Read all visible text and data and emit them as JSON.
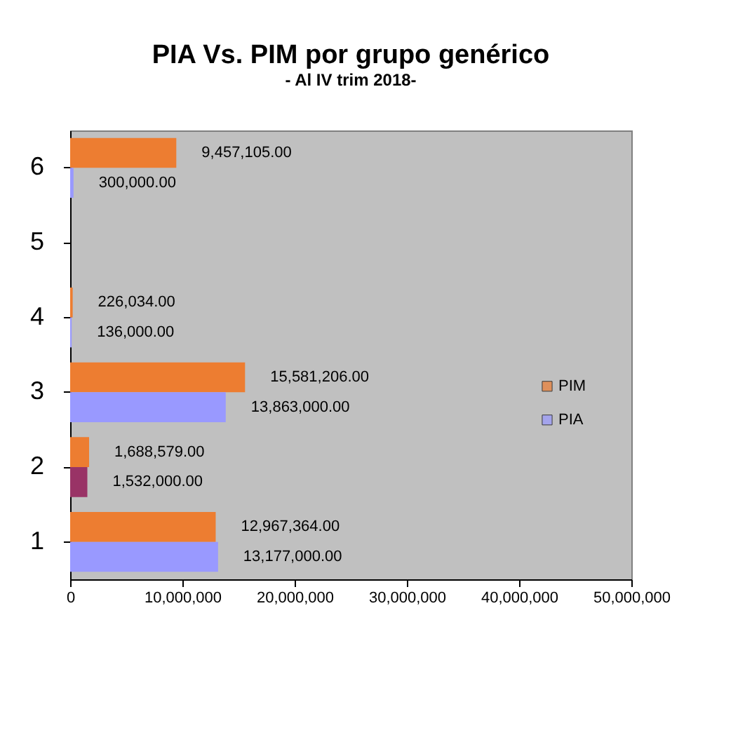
{
  "chart_data": {
    "type": "bar",
    "orientation": "horizontal",
    "title": "PIA Vs. PIM por grupo genérico",
    "subtitle": "-  Al IV trim 2018-",
    "categories": [
      "6",
      "5",
      "4",
      "3",
      "2",
      "1"
    ],
    "series": [
      {
        "name": "PIM",
        "color": "#ed7d31",
        "values": [
          9457105,
          null,
          226034,
          15581206,
          1688579,
          12967364
        ],
        "value_labels": [
          "9,457,105.00",
          null,
          "226,034.00",
          "15,581,206.00",
          "1,688,579.00",
          "12,967,364.00"
        ]
      },
      {
        "name": "PIA",
        "color": "#9999ff",
        "colors": [
          "#9999ff",
          "#9999ff",
          "#9999ff",
          "#9999ff",
          "#993366",
          "#9999ff"
        ],
        "values": [
          300000,
          null,
          136000,
          13863000,
          1532000,
          13177000
        ],
        "value_labels": [
          "300,000.00",
          null,
          "136,000.00",
          "13,863,000.00",
          "1,532,000.00",
          "13,177,000.00"
        ]
      }
    ],
    "xlim": [
      0,
      50000000
    ],
    "xticks": [
      0,
      {
        "value": 10000000,
        "label": "10,000,000"
      },
      {
        "value": 20000000,
        "label": "20,000,000"
      },
      {
        "value": 30000000,
        "label": "30,000,000"
      },
      {
        "value": 40000000,
        "label": "40,000,000"
      },
      {
        "value": 50000000,
        "label": "50,000,000"
      }
    ],
    "grid": false,
    "legend": "right"
  }
}
